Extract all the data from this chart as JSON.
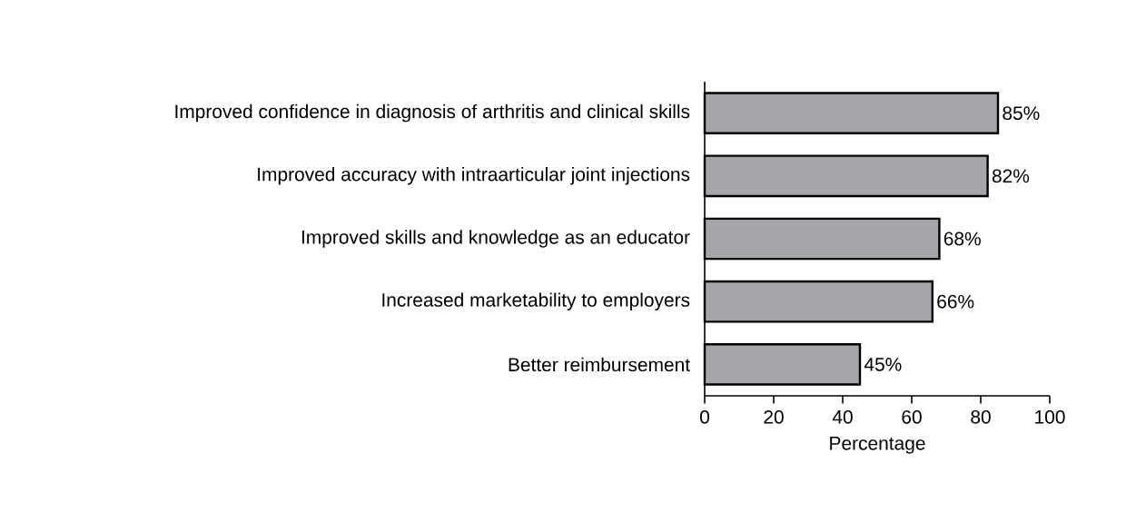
{
  "chart_data": {
    "type": "bar",
    "orientation": "horizontal",
    "xlabel": "Percentage",
    "categories": [
      "Improved confidence in diagnosis of arthritis and clinical skills",
      "Improved accuracy with intraarticular joint injections",
      "Improved skills and knowledge as an educator",
      "Increased marketability to employers",
      "Better reimbursement"
    ],
    "values": [
      85,
      82,
      68,
      66,
      45
    ],
    "value_labels": [
      "85%",
      "82%",
      "68%",
      "66%",
      "45%"
    ],
    "color": "#a6a6aa",
    "xlim": [
      0,
      100
    ],
    "xticks": [
      0,
      20,
      40,
      60,
      80,
      100
    ]
  }
}
